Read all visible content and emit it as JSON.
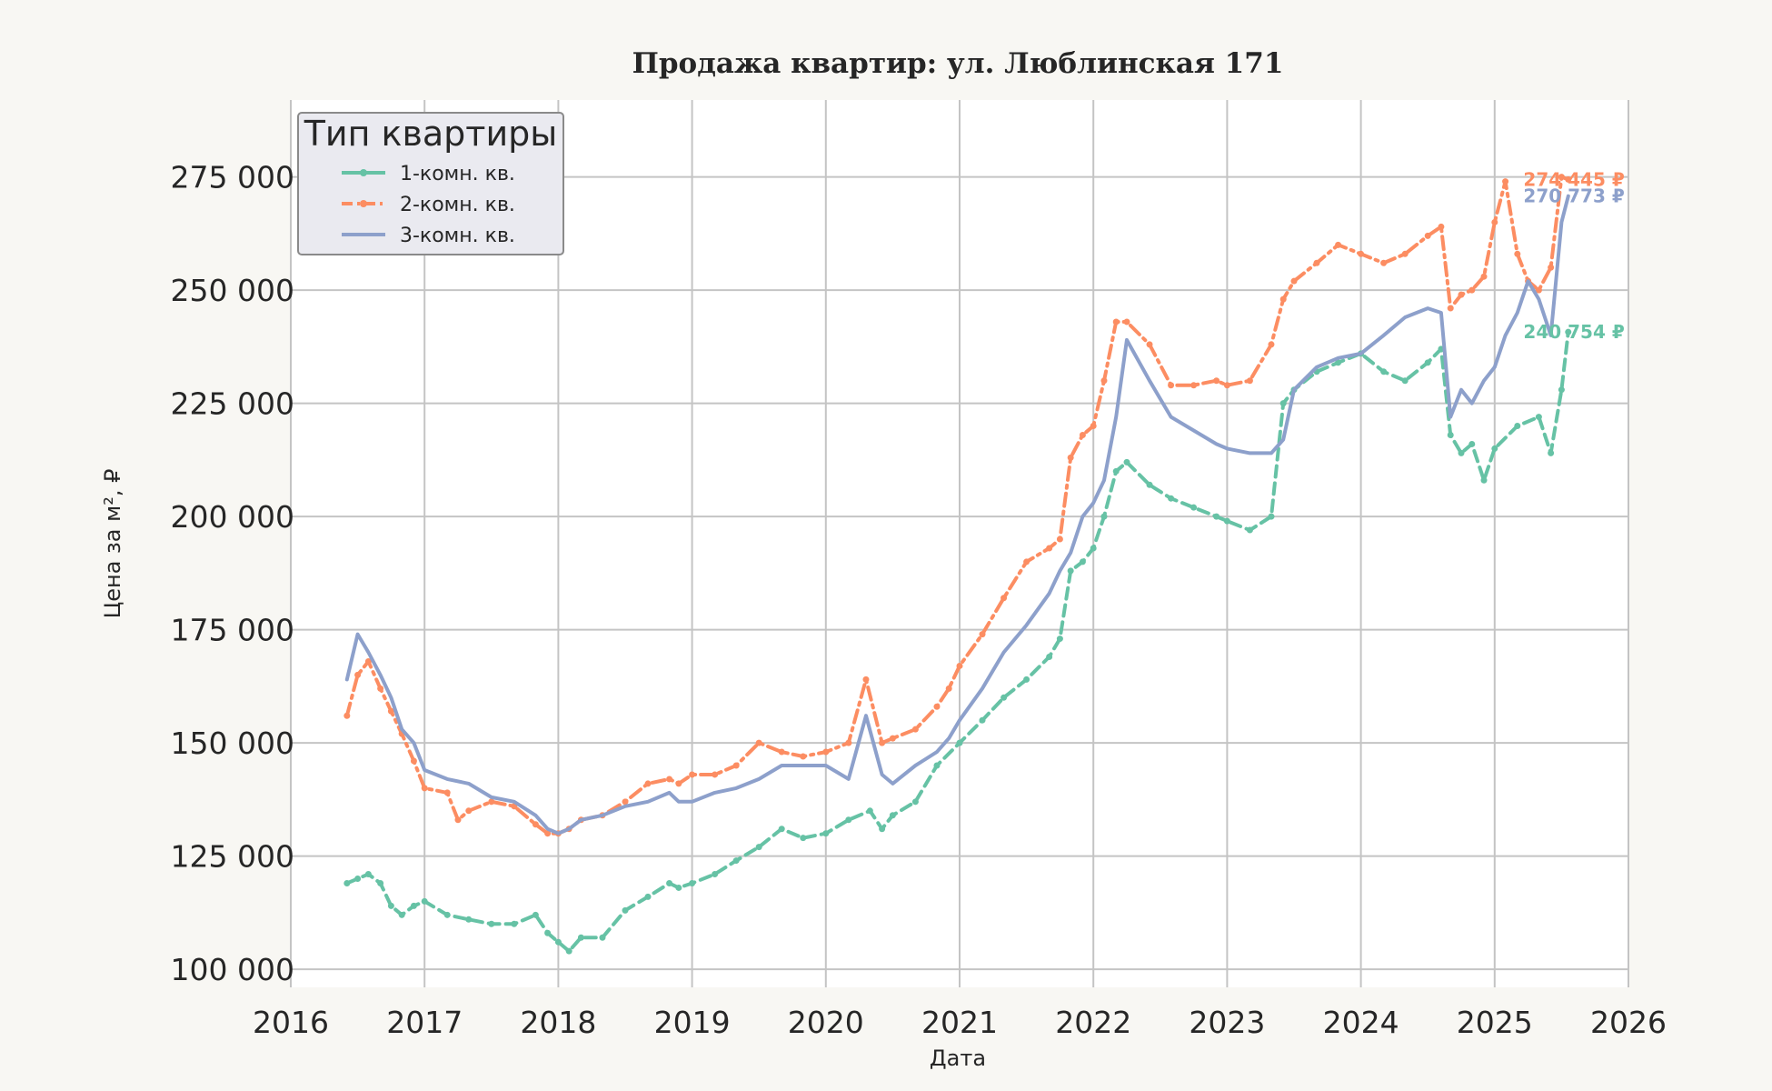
{
  "chart_data": {
    "type": "line",
    "title": "Продажа квартир: ул. Люблинская 171",
    "xlabel": "Дата",
    "ylabel": "Цена за м², ₽",
    "xlim": [
      2016,
      2026
    ],
    "ylim": [
      96000,
      292000
    ],
    "x_ticks": [
      "2016",
      "2017",
      "2018",
      "2019",
      "2020",
      "2021",
      "2022",
      "2023",
      "2024",
      "2025",
      "2026"
    ],
    "y_ticks": [
      100000,
      125000,
      150000,
      175000,
      200000,
      225000,
      250000,
      275000
    ],
    "y_tick_labels": [
      "100 000",
      "125 000",
      "150 000",
      "175 000",
      "200 000",
      "225 000",
      "250 000",
      "275 000"
    ],
    "grid": true,
    "legend": {
      "title": "Тип квартиры",
      "position": "top-left"
    },
    "series": [
      {
        "name": "1-комн. кв.",
        "color": "#66c2a5",
        "style": "dashed-markers",
        "end_label": "240 754 ₽",
        "x": [
          2016.42,
          2016.5,
          2016.58,
          2016.67,
          2016.75,
          2016.83,
          2016.92,
          2017.0,
          2017.17,
          2017.33,
          2017.5,
          2017.67,
          2017.83,
          2017.92,
          2018.0,
          2018.08,
          2018.17,
          2018.33,
          2018.5,
          2018.67,
          2018.83,
          2018.9,
          2019.0,
          2019.17,
          2019.33,
          2019.5,
          2019.67,
          2019.83,
          2020.0,
          2020.17,
          2020.33,
          2020.42,
          2020.5,
          2020.67,
          2020.83,
          2021.0,
          2021.17,
          2021.33,
          2021.5,
          2021.67,
          2021.75,
          2021.83,
          2021.92,
          2022.0,
          2022.08,
          2022.17,
          2022.25,
          2022.42,
          2022.58,
          2022.75,
          2022.92,
          2023.0,
          2023.17,
          2023.33,
          2023.42,
          2023.5,
          2023.67,
          2023.83,
          2024.0,
          2024.17,
          2024.33,
          2024.5,
          2024.6,
          2024.67,
          2024.75,
          2024.83,
          2024.92,
          2025.0,
          2025.17,
          2025.33,
          2025.42,
          2025.5,
          2025.55
        ],
        "values": [
          119000,
          120000,
          121000,
          119000,
          114000,
          112000,
          114000,
          115000,
          112000,
          111000,
          110000,
          110000,
          112000,
          108000,
          106000,
          104000,
          107000,
          107000,
          113000,
          116000,
          119000,
          118000,
          119000,
          121000,
          124000,
          127000,
          131000,
          129000,
          130000,
          133000,
          135000,
          131000,
          134000,
          137000,
          145000,
          150000,
          155000,
          160000,
          164000,
          169000,
          173000,
          188000,
          190000,
          193000,
          200000,
          210000,
          212000,
          207000,
          204000,
          202000,
          200000,
          199000,
          197000,
          200000,
          225000,
          228000,
          232000,
          234000,
          236000,
          232000,
          230000,
          234000,
          237000,
          218000,
          214000,
          216000,
          208000,
          215000,
          220000,
          222000,
          214000,
          228000,
          240754
        ]
      },
      {
        "name": "2-комн. кв.",
        "color": "#fc8d62",
        "style": "dashdot-markers",
        "end_label": "274 445 ₽",
        "x": [
          2016.42,
          2016.5,
          2016.58,
          2016.67,
          2016.75,
          2016.83,
          2016.92,
          2017.0,
          2017.17,
          2017.25,
          2017.33,
          2017.5,
          2017.67,
          2017.83,
          2017.92,
          2018.0,
          2018.08,
          2018.17,
          2018.33,
          2018.5,
          2018.67,
          2018.83,
          2018.9,
          2019.0,
          2019.17,
          2019.33,
          2019.5,
          2019.67,
          2019.83,
          2020.0,
          2020.17,
          2020.3,
          2020.42,
          2020.5,
          2020.67,
          2020.83,
          2020.92,
          2021.0,
          2021.17,
          2021.33,
          2021.5,
          2021.67,
          2021.75,
          2021.83,
          2021.92,
          2022.0,
          2022.08,
          2022.17,
          2022.25,
          2022.42,
          2022.58,
          2022.75,
          2022.92,
          2023.0,
          2023.17,
          2023.33,
          2023.42,
          2023.5,
          2023.67,
          2023.83,
          2024.0,
          2024.17,
          2024.33,
          2024.5,
          2024.6,
          2024.67,
          2024.75,
          2024.83,
          2024.92,
          2025.0,
          2025.08,
          2025.17,
          2025.25,
          2025.33,
          2025.42,
          2025.5,
          2025.55
        ],
        "values": [
          156000,
          165000,
          168000,
          162000,
          157000,
          152000,
          146000,
          140000,
          139000,
          133000,
          135000,
          137000,
          136000,
          132000,
          130000,
          130000,
          131000,
          133000,
          134000,
          137000,
          141000,
          142000,
          141000,
          143000,
          143000,
          145000,
          150000,
          148000,
          147000,
          148000,
          150000,
          164000,
          150000,
          151000,
          153000,
          158000,
          162000,
          167000,
          174000,
          182000,
          190000,
          193000,
          195000,
          213000,
          218000,
          220000,
          230000,
          243000,
          243000,
          238000,
          229000,
          229000,
          230000,
          229000,
          230000,
          238000,
          248000,
          252000,
          256000,
          260000,
          258000,
          256000,
          258000,
          262000,
          264000,
          246000,
          249000,
          250000,
          253000,
          265000,
          274000,
          258000,
          252000,
          250000,
          255000,
          275000,
          274445
        ]
      },
      {
        "name": "3-комн. кв.",
        "color": "#8da0cb",
        "style": "solid",
        "end_label": "270 773 ₽",
        "x": [
          2016.42,
          2016.5,
          2016.58,
          2016.67,
          2016.75,
          2016.83,
          2016.92,
          2017.0,
          2017.17,
          2017.33,
          2017.5,
          2017.67,
          2017.83,
          2017.92,
          2018.0,
          2018.08,
          2018.17,
          2018.33,
          2018.5,
          2018.67,
          2018.83,
          2018.9,
          2019.0,
          2019.17,
          2019.33,
          2019.5,
          2019.67,
          2019.83,
          2020.0,
          2020.17,
          2020.3,
          2020.42,
          2020.5,
          2020.67,
          2020.83,
          2020.92,
          2021.0,
          2021.17,
          2021.33,
          2021.5,
          2021.67,
          2021.75,
          2021.83,
          2021.92,
          2022.0,
          2022.08,
          2022.17,
          2022.25,
          2022.42,
          2022.58,
          2022.75,
          2022.92,
          2023.0,
          2023.17,
          2023.33,
          2023.42,
          2023.5,
          2023.67,
          2023.83,
          2024.0,
          2024.17,
          2024.33,
          2024.5,
          2024.6,
          2024.67,
          2024.75,
          2024.83,
          2024.92,
          2025.0,
          2025.08,
          2025.17,
          2025.25,
          2025.33,
          2025.42,
          2025.5,
          2025.55
        ],
        "values": [
          164000,
          174000,
          170000,
          165000,
          160000,
          153000,
          150000,
          144000,
          142000,
          141000,
          138000,
          137000,
          134000,
          131000,
          130000,
          131000,
          133000,
          134000,
          136000,
          137000,
          139000,
          137000,
          137000,
          139000,
          140000,
          142000,
          145000,
          145000,
          145000,
          142000,
          156000,
          143000,
          141000,
          145000,
          148000,
          151000,
          155000,
          162000,
          170000,
          176000,
          183000,
          188000,
          192000,
          200000,
          203000,
          208000,
          222000,
          239000,
          230000,
          222000,
          219000,
          216000,
          215000,
          214000,
          214000,
          217000,
          228000,
          233000,
          235000,
          236000,
          240000,
          244000,
          246000,
          245000,
          222000,
          228000,
          225000,
          230000,
          233000,
          240000,
          245000,
          252000,
          248000,
          240000,
          265000,
          270773
        ]
      }
    ]
  }
}
